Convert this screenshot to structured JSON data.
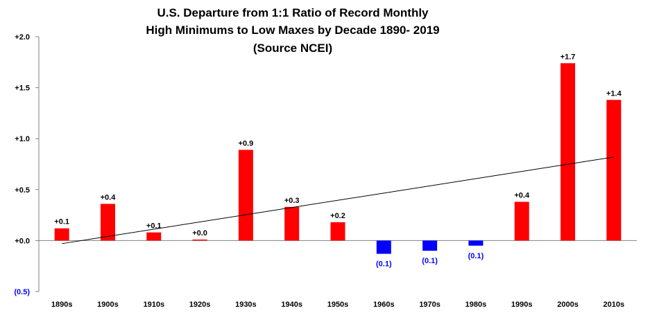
{
  "chart_data": {
    "type": "bar",
    "title_lines": [
      "U.S. Departure from 1:1 Ratio of Record Monthly",
      "High Minimums to Low Maxes by Decade 1890- 2019",
      "(Source NCEI)"
    ],
    "categories": [
      "1890s",
      "1900s",
      "1910s",
      "1920s",
      "1930s",
      "1940s",
      "1950s",
      "1960s",
      "1970s",
      "1980s",
      "1990s",
      "2000s",
      "2010s"
    ],
    "values": [
      0.12,
      0.36,
      0.08,
      0.01,
      0.89,
      0.33,
      0.18,
      -0.13,
      -0.1,
      -0.05,
      0.38,
      1.74,
      1.38
    ],
    "data_labels": [
      "+0.1",
      "+0.4",
      "+0.1",
      "+0.0",
      "+0.9",
      "+0.3",
      "+0.2",
      "(0.1)",
      "(0.1)",
      "(0.1)",
      "+0.4",
      "+1.7",
      "+1.4"
    ],
    "ylim": [
      -0.5,
      2.0
    ],
    "yticks": [
      {
        "value": 2.0,
        "label": "+2.0"
      },
      {
        "value": 1.5,
        "label": "+1.5"
      },
      {
        "value": 1.0,
        "label": "+1.0"
      },
      {
        "value": 0.5,
        "label": "+0.5"
      },
      {
        "value": 0.0,
        "label": "+0.0"
      },
      {
        "value": -0.5,
        "label": "(0.5)"
      }
    ],
    "trendline": {
      "start": -0.03,
      "end": 0.82
    },
    "colors": {
      "positive": "#ff0000",
      "negative": "#0000ff",
      "trend": "#000000",
      "axis": "#808080",
      "negative_label": "#0000ff"
    },
    "grid": false,
    "legend": "none"
  }
}
